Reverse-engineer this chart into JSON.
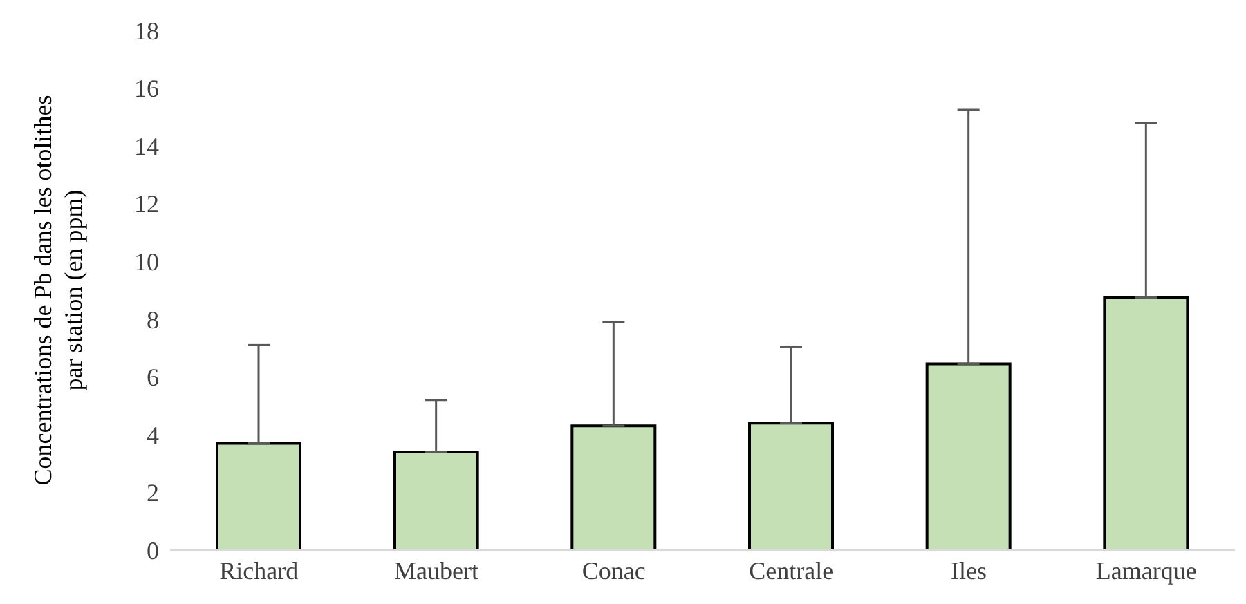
{
  "chart_data": {
    "type": "bar",
    "ylabel": "Concentrations de Pb dans les otolithes par station (en ppm)",
    "categories": [
      "Richard",
      "Maubert",
      "Conac",
      "Centrale",
      "Iles",
      "Lamarque"
    ],
    "values": [
      3.7,
      3.4,
      4.3,
      4.4,
      6.45,
      8.75
    ],
    "errors": [
      [
        3.7,
        7.1
      ],
      [
        3.4,
        5.2
      ],
      [
        4.3,
        7.9
      ],
      [
        4.4,
        7.05
      ],
      [
        6.45,
        15.25
      ],
      [
        8.75,
        14.8
      ]
    ],
    "color": "#c5e0b4",
    "ylim": [
      0,
      18
    ],
    "yticks": [
      0,
      2,
      4,
      6,
      8,
      10,
      12,
      14,
      16,
      18
    ],
    "grid": false,
    "legend": false
  }
}
